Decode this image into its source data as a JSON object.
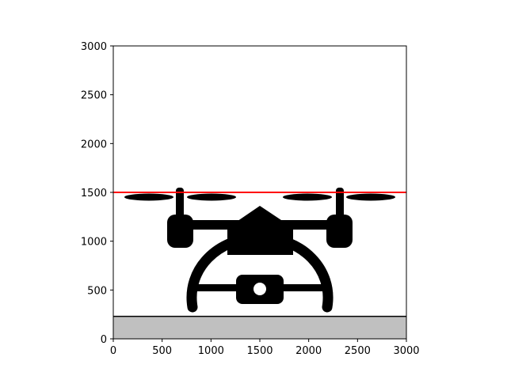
{
  "chart_data": {
    "type": "line",
    "title": "",
    "xlabel": "",
    "ylabel": "",
    "xlim": [
      0,
      3000
    ],
    "ylim": [
      0,
      3000
    ],
    "xticks": [
      0,
      500,
      1000,
      1500,
      2000,
      2500,
      3000
    ],
    "yticks": [
      0,
      500,
      1000,
      1500,
      2000,
      2500,
      3000
    ],
    "grid": false,
    "ground": {
      "top": 230,
      "fill": "#c0c0c0",
      "edge": "#000000"
    },
    "hline": {
      "y": 1500,
      "color": "#ff0000"
    },
    "image": {
      "icon": "drone-icon",
      "color": "#000000"
    }
  }
}
